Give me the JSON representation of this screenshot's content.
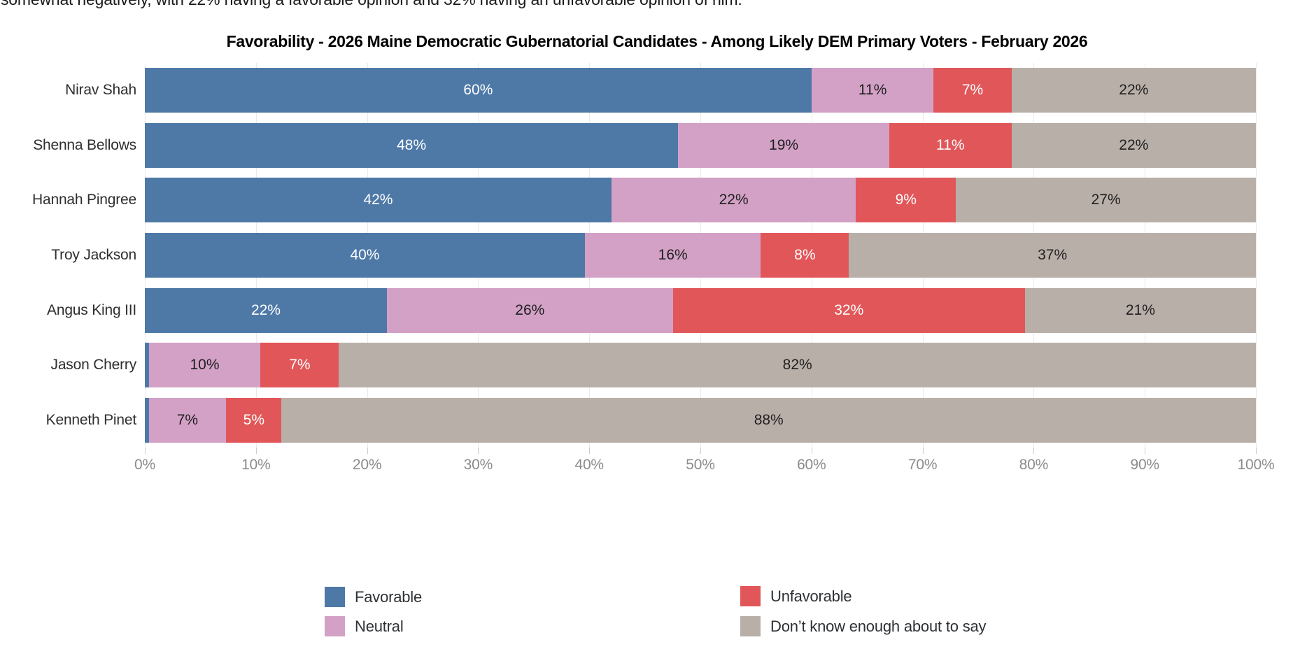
{
  "top_note": "somewhat negatively, with 22% having a favorable opinion and 32% having an unfavorable opinion of him.",
  "chart_data": {
    "type": "bar",
    "orientation": "horizontal",
    "stacked": true,
    "title": "Favorability - 2026 Maine Democratic Gubernatorial Candidates - Among Likely DEM Primary Voters - February 2026",
    "categories": [
      "Nirav Shah",
      "Shenna Bellows",
      "Hannah Pingree",
      "Troy Jackson",
      "Angus King III",
      "Jason Cherry",
      "Kenneth Pinet"
    ],
    "series": [
      {
        "name": "Favorable",
        "color": "#4e79a7",
        "label_color": "#ffffff",
        "values": [
          60,
          48,
          42,
          40,
          22,
          0.35,
          0.35
        ],
        "labels": [
          "60%",
          "48%",
          "42%",
          "40%",
          "22%",
          "",
          ""
        ]
      },
      {
        "name": "Neutral",
        "color": "#d3a1c6",
        "label_color": "#1f1f1f",
        "values": [
          11,
          19,
          22,
          16,
          26,
          10,
          7
        ],
        "labels": [
          "11%",
          "19%",
          "22%",
          "16%",
          "26%",
          "10%",
          "7%"
        ]
      },
      {
        "name": "Unfavorable",
        "color": "#e15759",
        "label_color": "#ffffff",
        "values": [
          7,
          11,
          9,
          8,
          32,
          7,
          5
        ],
        "labels": [
          "7%",
          "11%",
          "9%",
          "8%",
          "32%",
          "7%",
          "5%"
        ]
      },
      {
        "name": "Don’t know enough about to say",
        "color": "#b9afa9",
        "label_color": "#1f1f1f",
        "values": [
          22,
          22,
          27,
          37,
          21,
          82,
          88
        ],
        "labels": [
          "22%",
          "22%",
          "27%",
          "37%",
          "21%",
          "82%",
          "88%"
        ]
      }
    ],
    "x_axis": {
      "range": [
        0,
        100
      ],
      "tick_labels": [
        "0%",
        "10%",
        "20%",
        "30%",
        "40%",
        "50%",
        "60%",
        "70%",
        "80%",
        "90%",
        "100%"
      ],
      "grid": true
    },
    "legend_position": "bottom"
  }
}
